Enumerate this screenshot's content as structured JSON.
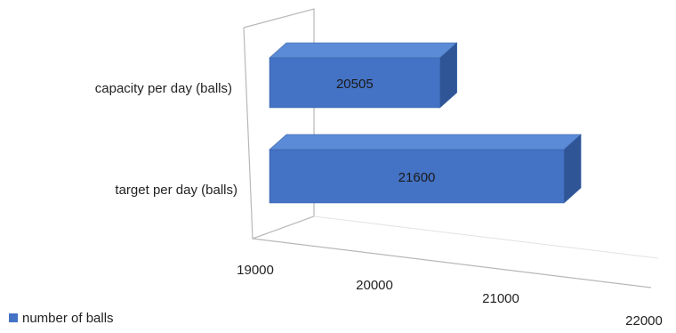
{
  "chart_data": {
    "type": "bar",
    "orientation": "horizontal",
    "style": "3d",
    "categories": [
      "capacity per day (balls)",
      "target per day (balls)"
    ],
    "series": [
      {
        "name": "number of balls",
        "values": [
          20505,
          21600
        ],
        "color": "#4472C4"
      }
    ],
    "xlim": [
      19000,
      22000
    ],
    "x_ticks": [
      "19000",
      "20000",
      "21000",
      "22000"
    ],
    "data_labels": [
      "20505",
      "21600"
    ],
    "legend_position": "bottom-left",
    "grid": false
  }
}
